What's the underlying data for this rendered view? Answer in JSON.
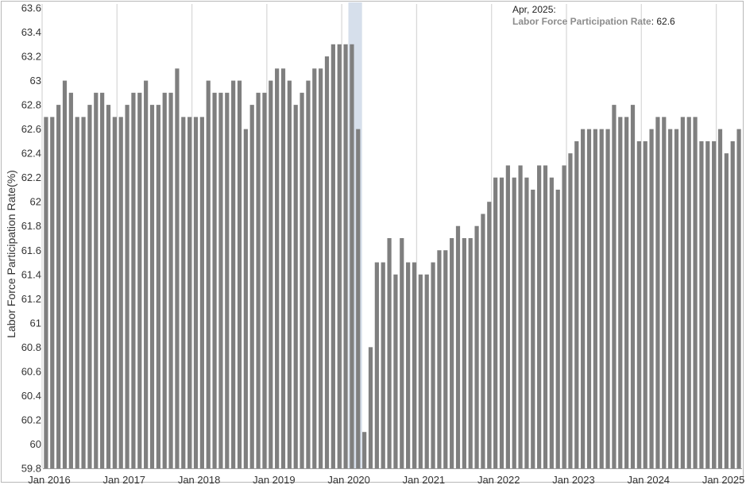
{
  "chart_data": {
    "type": "bar",
    "ylabel": "Labor Force Participation Rate(%)",
    "ylim": [
      59.8,
      63.6
    ],
    "yticks": [
      59.8,
      60,
      60.2,
      60.4,
      60.6,
      60.8,
      61,
      61.2,
      61.4,
      61.6,
      61.8,
      62,
      62.2,
      62.4,
      62.6,
      62.8,
      63,
      63.2,
      63.4,
      63.6
    ],
    "ytick_labels": [
      "59.8",
      "60",
      "60.2",
      "60.4",
      "60.6",
      "60.8",
      "61",
      "61.2",
      "61.4",
      "61.6",
      "61.8",
      "62",
      "62.2",
      "62.4",
      "62.6",
      "62.8",
      "63",
      "63.2",
      "63.4",
      "63.6"
    ],
    "x_start": "Jan 2016",
    "x_ticks": [
      "Jan 2016",
      "Jan 2017",
      "Jan 2018",
      "Jan 2019",
      "Jan 2020",
      "Jan 2021",
      "Jan 2022",
      "Jan 2023",
      "Jan 2024",
      "Jan 2025"
    ],
    "grid": "vertical at January",
    "bar_color": "#7f7f7f",
    "recession_color": "#d6dfeb",
    "recession": {
      "start": "Feb 2020",
      "end": "Apr 2020"
    },
    "series": [
      {
        "name": "Labor Force Participation Rate",
        "values": [
          62.7,
          62.7,
          62.8,
          63.0,
          62.9,
          62.7,
          62.7,
          62.8,
          62.9,
          62.9,
          62.8,
          62.7,
          62.7,
          62.8,
          62.9,
          62.9,
          63.0,
          62.8,
          62.8,
          62.9,
          62.9,
          63.1,
          62.7,
          62.7,
          62.7,
          62.7,
          63.0,
          62.9,
          62.9,
          62.9,
          63.0,
          63.0,
          62.6,
          62.8,
          62.9,
          62.9,
          63.0,
          63.1,
          63.1,
          63.0,
          62.8,
          62.9,
          63.0,
          63.1,
          63.1,
          63.2,
          63.3,
          63.3,
          63.3,
          63.3,
          62.6,
          60.1,
          60.8,
          61.5,
          61.5,
          61.7,
          61.4,
          61.7,
          61.5,
          61.5,
          61.4,
          61.4,
          61.5,
          61.6,
          61.6,
          61.7,
          61.8,
          61.7,
          61.7,
          61.8,
          61.9,
          62.0,
          62.2,
          62.2,
          62.3,
          62.2,
          62.3,
          62.2,
          62.1,
          62.3,
          62.3,
          62.2,
          62.1,
          62.3,
          62.4,
          62.5,
          62.6,
          62.6,
          62.6,
          62.6,
          62.6,
          62.8,
          62.7,
          62.7,
          62.8,
          62.5,
          62.5,
          62.6,
          62.7,
          62.7,
          62.6,
          62.6,
          62.7,
          62.7,
          62.7,
          62.5,
          62.5,
          62.5,
          62.6,
          62.4,
          62.5,
          62.6
        ]
      }
    ],
    "tooltip": {
      "date": "Apr, 2025:",
      "series": "Labor Force Participation Rate",
      "value": "62.6"
    }
  }
}
